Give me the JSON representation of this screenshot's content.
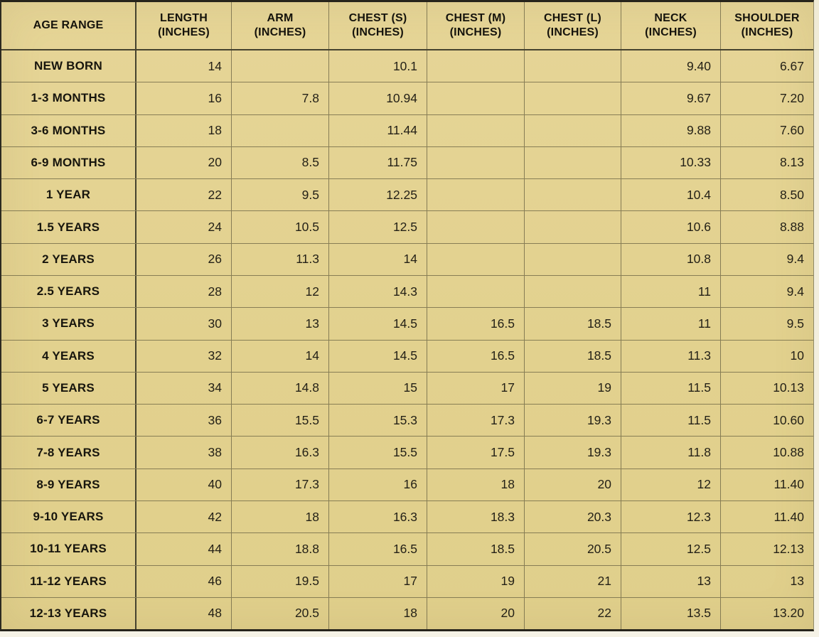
{
  "colors": {
    "table_background": "#e3d292",
    "outer_border": "#26241b",
    "heavy_rule": "#46432f",
    "light_rule": "#8f8968",
    "text": "#1c1a12",
    "page_edge": "#f3efe0"
  },
  "chart_data": {
    "type": "table",
    "columns": [
      {
        "label": "AGE RANGE",
        "unit": ""
      },
      {
        "label": "LENGTH",
        "unit": "(INCHES)"
      },
      {
        "label": "ARM",
        "unit": "(INCHES)"
      },
      {
        "label": "CHEST (S)",
        "unit": "(INCHES)"
      },
      {
        "label": "CHEST (M)",
        "unit": "(INCHES)"
      },
      {
        "label": "CHEST (L)",
        "unit": "(INCHES)"
      },
      {
        "label": "NECK",
        "unit": "(INCHES)"
      },
      {
        "label": "SHOULDER",
        "unit": "(INCHES)"
      }
    ],
    "rows": [
      {
        "age": "NEW BORN",
        "values": [
          "14",
          "",
          "10.1",
          "",
          "",
          "9.40",
          "6.67"
        ]
      },
      {
        "age": "1-3 MONTHS",
        "values": [
          "16",
          "7.8",
          "10.94",
          "",
          "",
          "9.67",
          "7.20"
        ]
      },
      {
        "age": "3-6 MONTHS",
        "values": [
          "18",
          "",
          "11.44",
          "",
          "",
          "9.88",
          "7.60"
        ]
      },
      {
        "age": "6-9 MONTHS",
        "values": [
          "20",
          "8.5",
          "11.75",
          "",
          "",
          "10.33",
          "8.13"
        ]
      },
      {
        "age": "1 YEAR",
        "values": [
          "22",
          "9.5",
          "12.25",
          "",
          "",
          "10.4",
          "8.50"
        ]
      },
      {
        "age": "1.5 YEARS",
        "values": [
          "24",
          "10.5",
          "12.5",
          "",
          "",
          "10.6",
          "8.88"
        ]
      },
      {
        "age": "2 YEARS",
        "values": [
          "26",
          "11.3",
          "14",
          "",
          "",
          "10.8",
          "9.4"
        ]
      },
      {
        "age": "2.5 YEARS",
        "values": [
          "28",
          "12",
          "14.3",
          "",
          "",
          "11",
          "9.4"
        ]
      },
      {
        "age": "3 YEARS",
        "values": [
          "30",
          "13",
          "14.5",
          "16.5",
          "18.5",
          "11",
          "9.5"
        ]
      },
      {
        "age": "4 YEARS",
        "values": [
          "32",
          "14",
          "14.5",
          "16.5",
          "18.5",
          "11.3",
          "10"
        ]
      },
      {
        "age": "5 YEARS",
        "values": [
          "34",
          "14.8",
          "15",
          "17",
          "19",
          "11.5",
          "10.13"
        ]
      },
      {
        "age": "6-7 YEARS",
        "values": [
          "36",
          "15.5",
          "15.3",
          "17.3",
          "19.3",
          "11.5",
          "10.60"
        ]
      },
      {
        "age": "7-8 YEARS",
        "values": [
          "38",
          "16.3",
          "15.5",
          "17.5",
          "19.3",
          "11.8",
          "10.88"
        ]
      },
      {
        "age": "8-9 YEARS",
        "values": [
          "40",
          "17.3",
          "16",
          "18",
          "20",
          "12",
          "11.40"
        ]
      },
      {
        "age": "9-10 YEARS",
        "values": [
          "42",
          "18",
          "16.3",
          "18.3",
          "20.3",
          "12.3",
          "11.40"
        ]
      },
      {
        "age": "10-11 YEARS",
        "values": [
          "44",
          "18.8",
          "16.5",
          "18.5",
          "20.5",
          "12.5",
          "12.13"
        ]
      },
      {
        "age": "11-12 YEARS",
        "values": [
          "46",
          "19.5",
          "17",
          "19",
          "21",
          "13",
          "13"
        ]
      },
      {
        "age": "12-13 YEARS",
        "values": [
          "48",
          "20.5",
          "18",
          "20",
          "22",
          "13.5",
          "13.20"
        ]
      }
    ]
  }
}
